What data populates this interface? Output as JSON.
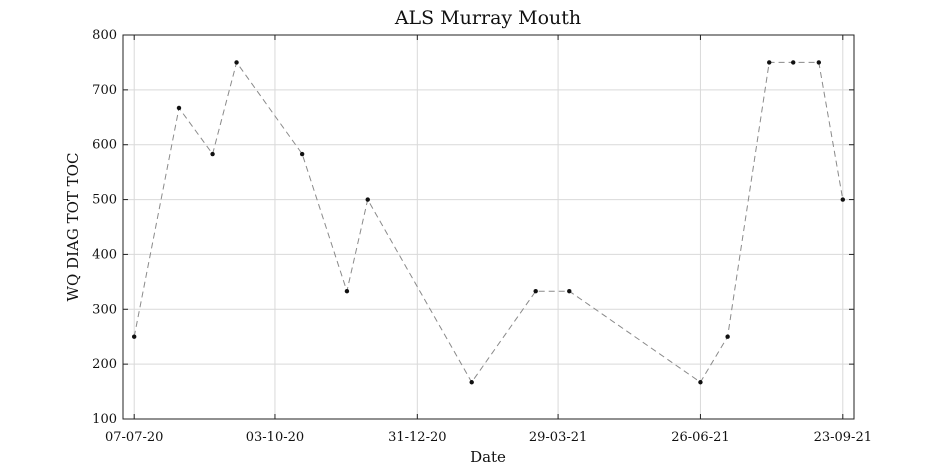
{
  "chart_data": {
    "type": "line",
    "title": "ALS Murray Mouth",
    "xlabel": "Date",
    "ylabel": "WQ DIAG TOT TOC",
    "ylim": [
      100,
      800
    ],
    "yticks": [
      100,
      200,
      300,
      400,
      500,
      600,
      700,
      800
    ],
    "xlim": [
      "2020-06-30",
      "2021-09-30"
    ],
    "xticks": [
      {
        "date": "2020-07-07",
        "label": "07-07-20"
      },
      {
        "date": "2020-10-03",
        "label": "03-10-20"
      },
      {
        "date": "2020-12-31",
        "label": "31-12-20"
      },
      {
        "date": "2021-03-29",
        "label": "29-03-21"
      },
      {
        "date": "2021-06-26",
        "label": "26-06-21"
      },
      {
        "date": "2021-09-23",
        "label": "23-09-21"
      }
    ],
    "grid": true,
    "line_style": "dashed",
    "line_color": "#8a8a8a",
    "marker_color": "#111111",
    "series": [
      {
        "points": [
          {
            "x": "2020-07-07",
            "y": 250
          },
          {
            "x": "2020-08-04",
            "y": 667
          },
          {
            "x": "2020-08-25",
            "y": 583
          },
          {
            "x": "2020-09-09",
            "y": 750
          },
          {
            "x": "2020-10-20",
            "y": 583
          },
          {
            "x": "2020-11-17",
            "y": 333
          },
          {
            "x": "2020-11-30",
            "y": 500
          },
          {
            "x": "2021-02-03",
            "y": 167
          },
          {
            "x": "2021-03-15",
            "y": 333
          },
          {
            "x": "2021-04-05",
            "y": 333
          },
          {
            "x": "2021-06-26",
            "y": 167
          },
          {
            "x": "2021-07-13",
            "y": 250
          },
          {
            "x": "2021-08-08",
            "y": 750
          },
          {
            "x": "2021-08-23",
            "y": 750
          },
          {
            "x": "2021-09-08",
            "y": 750
          },
          {
            "x": "2021-09-23",
            "y": 500
          }
        ]
      }
    ]
  }
}
